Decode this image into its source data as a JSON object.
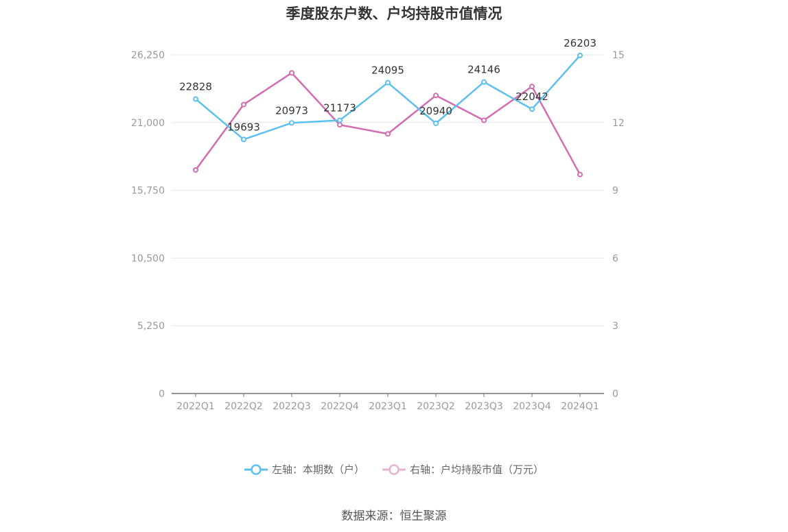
{
  "title": "季度股东户数、户均持股市值情况",
  "source": "数据来源：恒生聚源",
  "legend": [
    {
      "label": "左轴：本期数（户）",
      "color": "#5bc0f0"
    },
    {
      "label": "右轴：户均持股市值（万元）",
      "color": "#d26cb0"
    }
  ],
  "chart_data": {
    "type": "line",
    "categories": [
      "2022Q1",
      "2022Q2",
      "2022Q3",
      "2022Q4",
      "2023Q1",
      "2023Q2",
      "2023Q3",
      "2023Q4",
      "2024Q1"
    ],
    "series": [
      {
        "name": "左轴：本期数（户）",
        "axis": "left",
        "color": "#5bc0f0",
        "values": [
          22828,
          19693,
          20973,
          21173,
          24095,
          20940,
          24146,
          22042,
          26203
        ],
        "show_labels": true
      },
      {
        "name": "右轴：户均持股市值（万元）",
        "axis": "right",
        "color": "#d26cb0",
        "values": [
          9.9,
          12.8,
          14.2,
          11.9,
          11.5,
          13.2,
          12.1,
          13.6,
          9.7
        ],
        "show_labels": false
      }
    ],
    "y_left": {
      "min": 0,
      "max": 26250,
      "ticks": [
        "0",
        "5,250",
        "10,500",
        "15,750",
        "21,000",
        "26,250"
      ]
    },
    "y_right": {
      "min": 0,
      "max": 15,
      "ticks": [
        "0",
        "3",
        "6",
        "9",
        "12",
        "15"
      ]
    },
    "grid": true,
    "legend_position": "bottom"
  }
}
